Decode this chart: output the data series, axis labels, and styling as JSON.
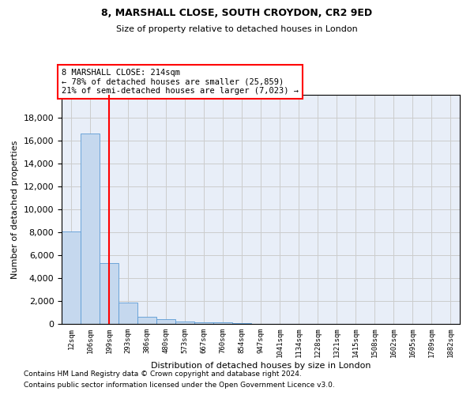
{
  "title1": "8, MARSHALL CLOSE, SOUTH CROYDON, CR2 9ED",
  "title2": "Size of property relative to detached houses in London",
  "xlabel": "Distribution of detached houses by size in London",
  "ylabel": "Number of detached properties",
  "bar_color": "#c5d8ee",
  "bar_edge_color": "#5b9bd5",
  "categories": [
    "12sqm",
    "106sqm",
    "199sqm",
    "293sqm",
    "386sqm",
    "480sqm",
    "573sqm",
    "667sqm",
    "760sqm",
    "854sqm",
    "947sqm",
    "1041sqm",
    "1134sqm",
    "1228sqm",
    "1321sqm",
    "1415sqm",
    "1508sqm",
    "1602sqm",
    "1695sqm",
    "1789sqm",
    "1882sqm"
  ],
  "values": [
    8100,
    16600,
    5300,
    1850,
    650,
    380,
    240,
    160,
    110,
    80,
    0,
    0,
    0,
    0,
    0,
    0,
    0,
    0,
    0,
    0,
    0
  ],
  "red_line_x": 2.0,
  "annotation_line1": "8 MARSHALL CLOSE: 214sqm",
  "annotation_line2": "← 78% of detached houses are smaller (25,859)",
  "annotation_line3": "21% of semi-detached houses are larger (7,023) →",
  "annotation_box_color": "white",
  "annotation_box_edgecolor": "red",
  "footnote1": "Contains HM Land Registry data © Crown copyright and database right 2024.",
  "footnote2": "Contains public sector information licensed under the Open Government Licence v3.0.",
  "ylim": [
    0,
    20000
  ],
  "yticks": [
    0,
    2000,
    4000,
    6000,
    8000,
    10000,
    12000,
    14000,
    16000,
    18000
  ],
  "grid_color": "#cccccc",
  "background_color": "#e8eef8"
}
